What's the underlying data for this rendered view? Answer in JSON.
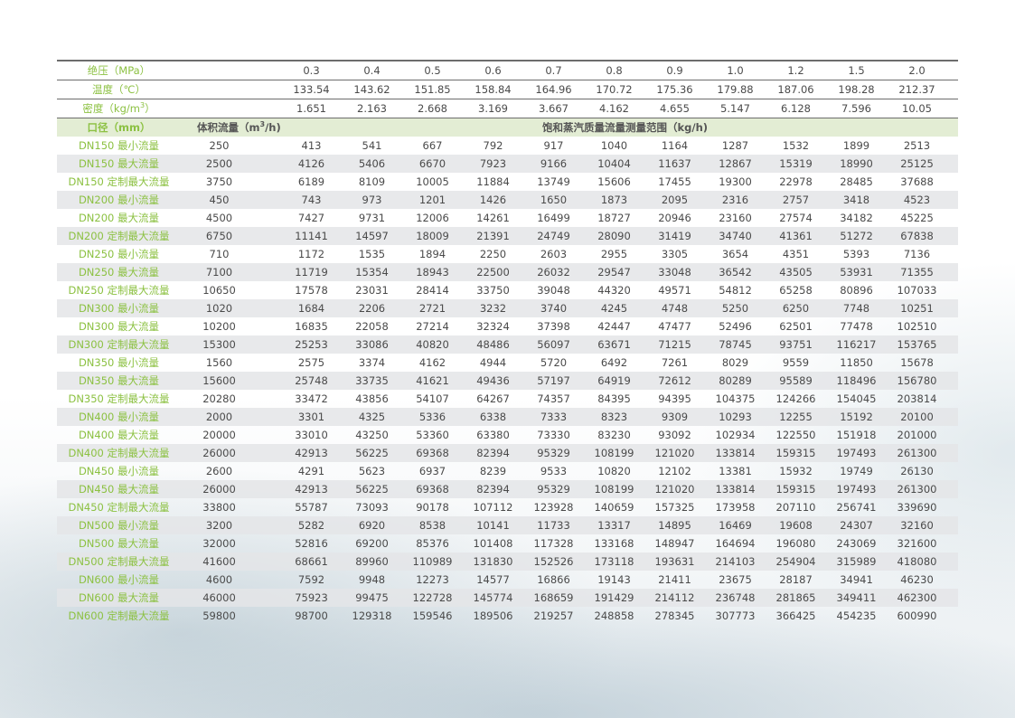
{
  "header": {
    "pressure_label": "绝压（MPa）",
    "pressures": [
      "0.3",
      "0.4",
      "0.5",
      "0.6",
      "0.7",
      "0.8",
      "0.9",
      "1.0",
      "1.2",
      "1.5",
      "2.0"
    ],
    "temperature_label": "温度（℃）",
    "temperatures": [
      "133.54",
      "143.62",
      "151.85",
      "158.84",
      "164.96",
      "170.72",
      "175.36",
      "179.88",
      "187.06",
      "198.28",
      "212.37"
    ],
    "density_label": "密度（kg/m³）",
    "densities": [
      "1.651",
      "2.163",
      "2.668",
      "3.169",
      "3.667",
      "4.162",
      "4.655",
      "5.147",
      "6.128",
      "7.596",
      "10.05"
    ],
    "diameter_label": "口径（mm）",
    "volume_flow_label": "体积流量（m³/h)",
    "mass_flow_label": "饱和蒸汽质量流量测量范围（kg/h)"
  },
  "colors": {
    "label_green": "#8cc142",
    "header_band": "#e3edd4",
    "stripe": "#e4e5e8"
  },
  "rows": [
    {
      "label": "DN150 最小流量",
      "vol": "250",
      "values": [
        "413",
        "541",
        "667",
        "792",
        "917",
        "1040",
        "1164",
        "1287",
        "1532",
        "1899",
        "2513"
      ]
    },
    {
      "label": "DN150 最大流量",
      "vol": "2500",
      "values": [
        "4126",
        "5406",
        "6670",
        "7923",
        "9166",
        "10404",
        "11637",
        "12867",
        "15319",
        "18990",
        "25125"
      ]
    },
    {
      "label": "DN150 定制最大流量",
      "vol": "3750",
      "values": [
        "6189",
        "8109",
        "10005",
        "11884",
        "13749",
        "15606",
        "17455",
        "19300",
        "22978",
        "28485",
        "37688"
      ]
    },
    {
      "label": "DN200 最小流量",
      "vol": "450",
      "values": [
        "743",
        "973",
        "1201",
        "1426",
        "1650",
        "1873",
        "2095",
        "2316",
        "2757",
        "3418",
        "4523"
      ]
    },
    {
      "label": "DN200 最大流量",
      "vol": "4500",
      "values": [
        "7427",
        "9731",
        "12006",
        "14261",
        "16499",
        "18727",
        "20946",
        "23160",
        "27574",
        "34182",
        "45225"
      ]
    },
    {
      "label": "DN200 定制最大流量",
      "vol": "6750",
      "values": [
        "11141",
        "14597",
        "18009",
        "21391",
        "24749",
        "28090",
        "31419",
        "34740",
        "41361",
        "51272",
        "67838"
      ]
    },
    {
      "label": "DN250 最小流量",
      "vol": "710",
      "values": [
        "1172",
        "1535",
        "1894",
        "2250",
        "2603",
        "2955",
        "3305",
        "3654",
        "4351",
        "5393",
        "7136"
      ]
    },
    {
      "label": "DN250 最大流量",
      "vol": "7100",
      "values": [
        "11719",
        "15354",
        "18943",
        "22500",
        "26032",
        "29547",
        "33048",
        "36542",
        "43505",
        "53931",
        "71355"
      ]
    },
    {
      "label": "DN250 定制最大流量",
      "vol": "10650",
      "values": [
        "17578",
        "23031",
        "28414",
        "33750",
        "39048",
        "44320",
        "49571",
        "54812",
        "65258",
        "80896",
        "107033"
      ]
    },
    {
      "label": "DN300 最小流量",
      "vol": "1020",
      "values": [
        "1684",
        "2206",
        "2721",
        "3232",
        "3740",
        "4245",
        "4748",
        "5250",
        "6250",
        "7748",
        "10251"
      ]
    },
    {
      "label": "DN300 最大流量",
      "vol": "10200",
      "values": [
        "16835",
        "22058",
        "27214",
        "32324",
        "37398",
        "42447",
        "47477",
        "52496",
        "62501",
        "77478",
        "102510"
      ]
    },
    {
      "label": "DN300 定制最大流量",
      "vol": "15300",
      "values": [
        "25253",
        "33086",
        "40820",
        "48486",
        "56097",
        "63671",
        "71215",
        "78745",
        "93751",
        "116217",
        "153765"
      ]
    },
    {
      "label": "DN350 最小流量",
      "vol": "1560",
      "values": [
        "2575",
        "3374",
        "4162",
        "4944",
        "5720",
        "6492",
        "7261",
        "8029",
        "9559",
        "11850",
        "15678"
      ]
    },
    {
      "label": "DN350 最大流量",
      "vol": "15600",
      "values": [
        "25748",
        "33735",
        "41621",
        "49436",
        "57197",
        "64919",
        "72612",
        "80289",
        "95589",
        "118496",
        "156780"
      ]
    },
    {
      "label": "DN350 定制最大流量",
      "vol": "20280",
      "values": [
        "33472",
        "43856",
        "54107",
        "64267",
        "74357",
        "84395",
        "94395",
        "104375",
        "124266",
        "154045",
        "203814"
      ]
    },
    {
      "label": "DN400 最小流量",
      "vol": "2000",
      "values": [
        "3301",
        "4325",
        "5336",
        "6338",
        "7333",
        "8323",
        "9309",
        "10293",
        "12255",
        "15192",
        "20100"
      ]
    },
    {
      "label": "DN400 最大流量",
      "vol": "20000",
      "values": [
        "33010",
        "43250",
        "53360",
        "63380",
        "73330",
        "83230",
        "93092",
        "102934",
        "122550",
        "151918",
        "201000"
      ]
    },
    {
      "label": "DN400 定制最大流量",
      "vol": "26000",
      "values": [
        "42913",
        "56225",
        "69368",
        "82394",
        "95329",
        "108199",
        "121020",
        "133814",
        "159315",
        "197493",
        "261300"
      ]
    },
    {
      "label": "DN450 最小流量",
      "vol": "2600",
      "values": [
        "4291",
        "5623",
        "6937",
        "8239",
        "9533",
        "10820",
        "12102",
        "13381",
        "15932",
        "19749",
        "26130"
      ]
    },
    {
      "label": "DN450 最大流量",
      "vol": "26000",
      "values": [
        "42913",
        "56225",
        "69368",
        "82394",
        "95329",
        "108199",
        "121020",
        "133814",
        "159315",
        "197493",
        "261300"
      ]
    },
    {
      "label": "DN450 定制最大流量",
      "vol": "33800",
      "values": [
        "55787",
        "73093",
        "90178",
        "107112",
        "123928",
        "140659",
        "157325",
        "173958",
        "207110",
        "256741",
        "339690"
      ]
    },
    {
      "label": "DN500 最小流量",
      "vol": "3200",
      "values": [
        "5282",
        "6920",
        "8538",
        "10141",
        "11733",
        "13317",
        "14895",
        "16469",
        "19608",
        "24307",
        "32160"
      ]
    },
    {
      "label": "DN500 最大流量",
      "vol": "32000",
      "values": [
        "52816",
        "69200",
        "85376",
        "101408",
        "117328",
        "133168",
        "148947",
        "164694",
        "196080",
        "243069",
        "321600"
      ]
    },
    {
      "label": "DN500 定制最大流量",
      "vol": "41600",
      "values": [
        "68661",
        "89960",
        "110989",
        "131830",
        "152526",
        "173118",
        "193631",
        "214103",
        "254904",
        "315989",
        "418080"
      ]
    },
    {
      "label": "DN600 最小流量",
      "vol": "4600",
      "values": [
        "7592",
        "9948",
        "12273",
        "14577",
        "16866",
        "19143",
        "21411",
        "23675",
        "28187",
        "34941",
        "46230"
      ]
    },
    {
      "label": "DN600 最大流量",
      "vol": "46000",
      "values": [
        "75923",
        "99475",
        "122728",
        "145774",
        "168659",
        "191429",
        "214112",
        "236748",
        "281865",
        "349411",
        "462300"
      ]
    },
    {
      "label": "DN600 定制最大流量",
      "vol": "59800",
      "values": [
        "98700",
        "129318",
        "159546",
        "189506",
        "219257",
        "248858",
        "278345",
        "307773",
        "366425",
        "454235",
        "600990"
      ]
    }
  ]
}
